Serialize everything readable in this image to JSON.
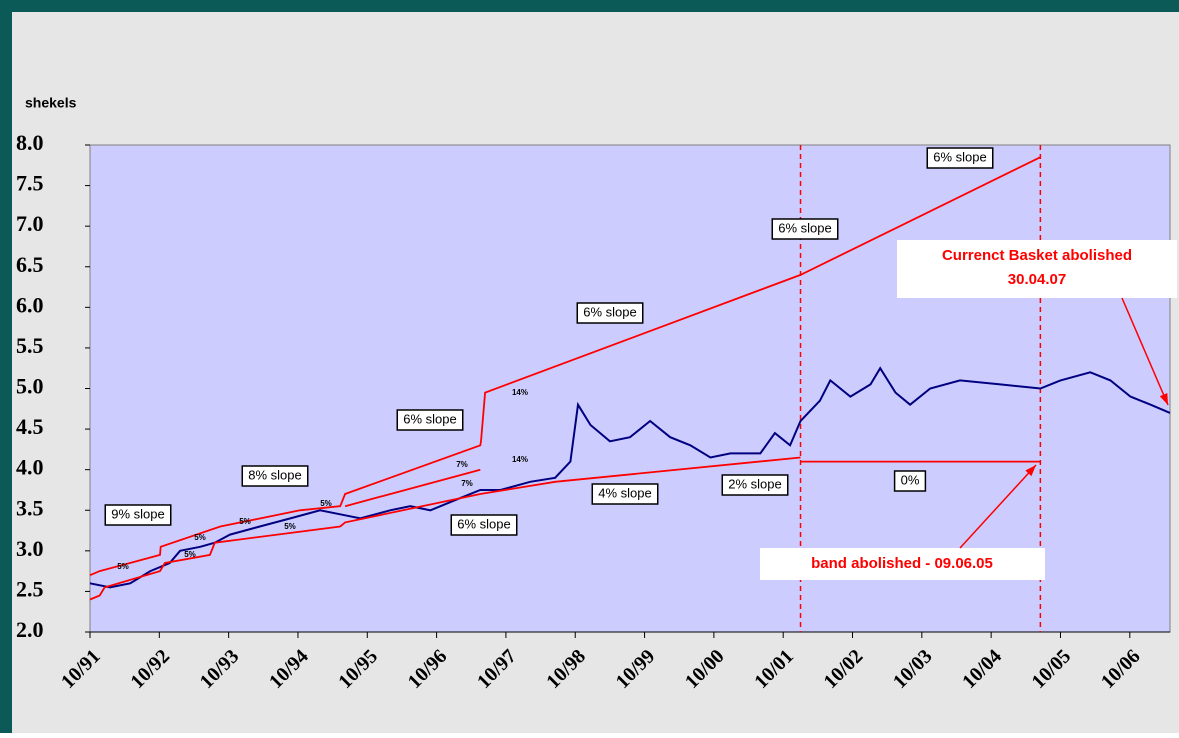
{
  "chart_data": {
    "type": "line",
    "y_label": "shekels",
    "xlim": [
      1991.75,
      2007.33
    ],
    "xticks": [
      {
        "value": 1991.75,
        "label": "10/91"
      },
      {
        "value": 1992.75,
        "label": "10/92"
      },
      {
        "value": 1993.75,
        "label": "10/93"
      },
      {
        "value": 1994.75,
        "label": "10/94"
      },
      {
        "value": 1995.75,
        "label": "10/95"
      },
      {
        "value": 1996.75,
        "label": "10/96"
      },
      {
        "value": 1997.75,
        "label": "10/97"
      },
      {
        "value": 1998.75,
        "label": "10/98"
      },
      {
        "value": 1999.75,
        "label": "10/99"
      },
      {
        "value": 2000.75,
        "label": "10/00"
      },
      {
        "value": 2001.75,
        "label": "10/01"
      },
      {
        "value": 2002.75,
        "label": "10/02"
      },
      {
        "value": 2003.75,
        "label": "10/03"
      },
      {
        "value": 2004.75,
        "label": "10/04"
      },
      {
        "value": 2005.75,
        "label": "10/05"
      },
      {
        "value": 2006.75,
        "label": "10/06"
      }
    ],
    "ylim": [
      2,
      8
    ],
    "yticks": [
      {
        "value": 2,
        "label": "2.0"
      },
      {
        "value": 2.5,
        "label": "2.5"
      },
      {
        "value": 3,
        "label": "3.0"
      },
      {
        "value": 3.5,
        "label": "3.5"
      },
      {
        "value": 4,
        "label": "4.0"
      },
      {
        "value": 4.5,
        "label": "4.5"
      },
      {
        "value": 5,
        "label": "5.0"
      },
      {
        "value": 5.5,
        "label": "5.5"
      },
      {
        "value": 6,
        "label": "6.0"
      },
      {
        "value": 6.5,
        "label": "6.5"
      },
      {
        "value": 7,
        "label": "7.0"
      },
      {
        "value": 7.5,
        "label": "7.5"
      },
      {
        "value": 8,
        "label": "8.0"
      }
    ],
    "series": [
      {
        "color": "#000080",
        "x": [
          1991.75,
          1992.04,
          1992.33,
          1992.62,
          1992.9,
          1993.05,
          1993.34,
          1993.55,
          1993.77,
          1994.2,
          1994.64,
          1995.07,
          1995.36,
          1995.65,
          1996.08,
          1996.37,
          1996.66,
          1997.09,
          1997.38,
          1997.67,
          1998.1,
          1998.46,
          1998.68,
          1998.79,
          1998.97,
          1999.25,
          1999.54,
          1999.83,
          2000.12,
          2000.41,
          2000.7,
          2000.99,
          2001.42,
          2001.63,
          2001.85,
          2002.0,
          2002.28,
          2002.43,
          2002.72,
          2003.01,
          2003.15,
          2003.37,
          2003.58,
          2003.87,
          2004.3,
          2004.88,
          2005.46,
          2005.75,
          2006.18,
          2006.47,
          2006.76,
          2007.05,
          2007.33
        ],
        "values": [
          2.6,
          2.55,
          2.6,
          2.75,
          2.85,
          3.0,
          3.05,
          3.1,
          3.2,
          3.3,
          3.4,
          3.5,
          3.45,
          3.4,
          3.5,
          3.55,
          3.5,
          3.65,
          3.75,
          3.75,
          3.85,
          3.9,
          4.1,
          4.8,
          4.55,
          4.35,
          4.4,
          4.6,
          4.4,
          4.3,
          4.15,
          4.2,
          4.2,
          4.45,
          4.3,
          4.6,
          4.85,
          5.1,
          4.9,
          5.05,
          5.25,
          4.95,
          4.8,
          5.0,
          5.1,
          5.05,
          5.0,
          5.1,
          5.2,
          5.1,
          4.9,
          4.8,
          4.7
        ]
      },
      {
        "color": "#ff0000",
        "x": [
          1991.75,
          1991.89,
          1992.76,
          1992.77,
          1993.63,
          1994.78,
          1995.36,
          1995.43,
          1997.38,
          1997.39,
          1997.45,
          2002.0,
          2005.46
        ],
        "values": [
          2.7,
          2.75,
          2.95,
          3.05,
          3.3,
          3.5,
          3.55,
          3.7,
          4.3,
          4.35,
          4.95,
          6.4,
          7.85
        ]
      },
      {
        "color": "#ff0000",
        "x": [
          1991.75,
          1991.89,
          1991.96,
          1992.76,
          1992.83,
          1993.48,
          1993.55,
          1995.36,
          1995.43,
          1997.38,
          1998.46,
          2002.0
        ],
        "values": [
          2.4,
          2.45,
          2.55,
          2.75,
          2.85,
          2.95,
          3.1,
          3.3,
          3.35,
          3.7,
          3.85,
          4.15
        ]
      },
      {
        "color": "#ff0000",
        "x": [
          2002.0,
          2005.46
        ],
        "values": [
          4.1,
          4.1
        ]
      },
      {
        "color": "#ff0000",
        "x": [
          1995.43,
          1997.38
        ],
        "values": [
          3.55,
          4.0
        ]
      }
    ],
    "vlines": [
      2002.0,
      2005.46
    ],
    "annotations": [
      "9% slope",
      "8% slope",
      "6% slope",
      "6% slope",
      "6% slope",
      "6% slope",
      "6% slope",
      "4% slope",
      "2% slope",
      "0%"
    ],
    "small_labels": [
      "5%",
      "5%",
      "5%",
      "5%",
      "5%",
      "5%",
      "7%",
      "7%",
      "14%",
      "14%"
    ],
    "event_labels": [
      [
        "Currenct Basket abolished",
        "30.04.07"
      ],
      [
        "band abolished - 09.06.05"
      ]
    ]
  }
}
